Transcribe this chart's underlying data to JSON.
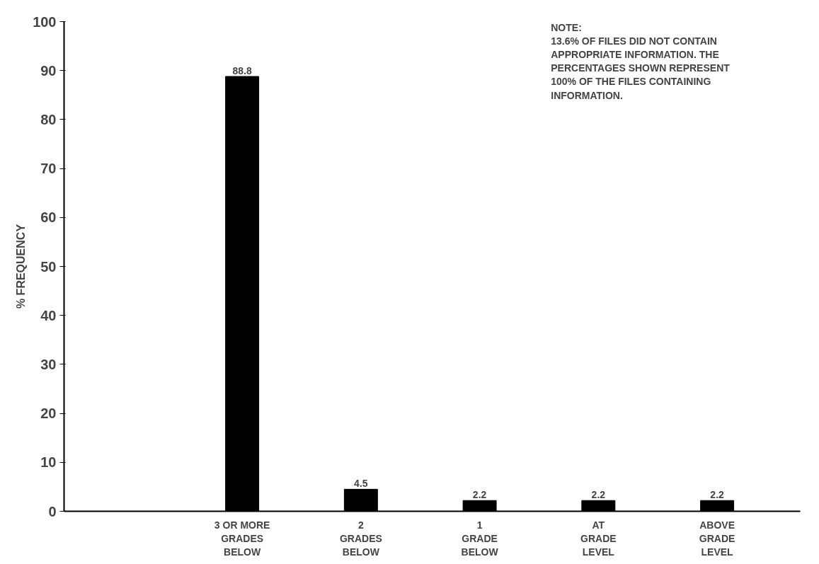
{
  "chart_data": {
    "type": "bar",
    "ylabel": "% FREQUENCY",
    "categories": [
      "3 OR MORE\nGRADES\nBELOW",
      "2\nGRADES\nBELOW",
      "1\nGRADE\nBELOW",
      "AT\nGRADE\nLEVEL",
      "ABOVE\nGRADE\nLEVEL"
    ],
    "values": [
      88.8,
      4.5,
      2.2,
      2.2,
      2.2
    ],
    "color": "#000000",
    "ylim": [
      0,
      100
    ],
    "yticks": [
      0,
      10,
      20,
      30,
      40,
      50,
      60,
      70,
      80,
      90,
      100
    ],
    "grid": false,
    "data_labels": true,
    "annotations": [
      "NOTE:\n13.6% OF FILES DID NOT CONTAIN\nAPPROPRIATE INFORMATION. THE\nPERCENTAGES SHOWN REPRESENT\n100% OF THE FILES CONTAINING\nINFORMATION."
    ]
  }
}
